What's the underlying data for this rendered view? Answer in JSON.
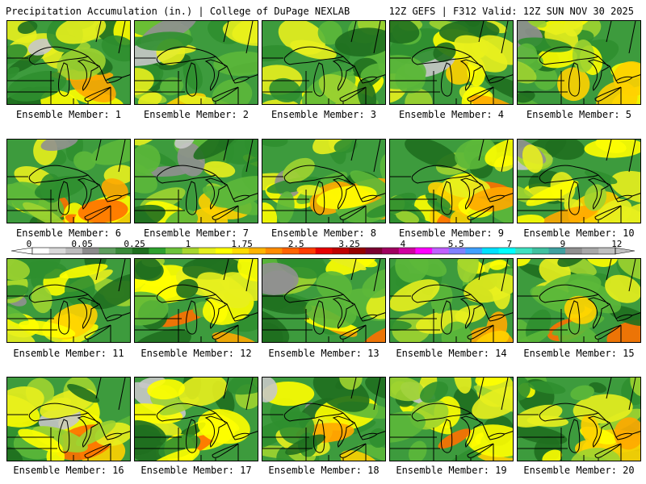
{
  "header": {
    "title": "Precipitation Accumulation (in.) | College of DuPage NEXLAB",
    "run_info": "12Z GEFS | F312 Valid: 12Z SUN NOV 30 2025"
  },
  "legend": {
    "units": "in.",
    "tick_labels": [
      "0",
      "0.05",
      "0.25",
      "1",
      "1.75",
      "2.5",
      "3.25",
      "4",
      "5.5",
      "7",
      "9",
      "12"
    ],
    "colors": [
      "#ffffff",
      "#d9d9d9",
      "#bdbdbd",
      "#8c8c8c",
      "#5e9e5e",
      "#3a8a3a",
      "#1e6e1e",
      "#2ea02e",
      "#6cc23a",
      "#a8d62e",
      "#e6ef1e",
      "#ffff00",
      "#ffdc00",
      "#ffb400",
      "#ff8c00",
      "#ff6400",
      "#ff3c00",
      "#e60000",
      "#c00000",
      "#960000",
      "#7a0030",
      "#a00060",
      "#d000a0",
      "#ff00ff",
      "#c060ff",
      "#8080ff",
      "#40a0ff",
      "#00e0ff",
      "#00ffff",
      "#40e0c0",
      "#40c0a0",
      "#40a0a0",
      "#909090",
      "#a8a8a8",
      "#c0c0c0"
    ]
  },
  "members": [
    {
      "label": "Ensemble Member: 1"
    },
    {
      "label": "Ensemble Member: 2"
    },
    {
      "label": "Ensemble Member: 3"
    },
    {
      "label": "Ensemble Member: 4"
    },
    {
      "label": "Ensemble Member: 5"
    },
    {
      "label": "Ensemble Member: 6"
    },
    {
      "label": "Ensemble Member: 7"
    },
    {
      "label": "Ensemble Member: 8"
    },
    {
      "label": "Ensemble Member: 9"
    },
    {
      "label": "Ensemble Member: 10"
    },
    {
      "label": "Ensemble Member: 11"
    },
    {
      "label": "Ensemble Member: 12"
    },
    {
      "label": "Ensemble Member: 13"
    },
    {
      "label": "Ensemble Member: 14"
    },
    {
      "label": "Ensemble Member: 15"
    },
    {
      "label": "Ensemble Member: 16"
    },
    {
      "label": "Ensemble Member: 17"
    },
    {
      "label": "Ensemble Member: 18"
    },
    {
      "label": "Ensemble Member: 19"
    },
    {
      "label": "Ensemble Member: 20"
    }
  ]
}
